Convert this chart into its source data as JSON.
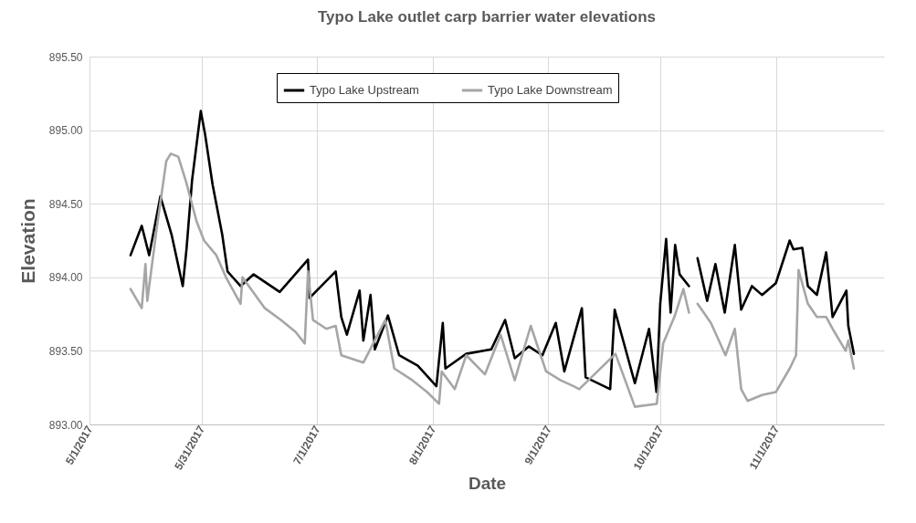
{
  "chart_data": {
    "type": "line",
    "title": "Typo Lake outlet carp barrier water elevations",
    "xlabel": "Date",
    "ylabel": "Elevation",
    "xlim": [
      "2017-05-01",
      "2017-11-30"
    ],
    "xticks": [
      {
        "value": "2017-05-01",
        "label": "5/1/2017"
      },
      {
        "value": "2017-05-31",
        "label": "5/31/2017"
      },
      {
        "value": "2017-07-01",
        "label": "7/1/2017"
      },
      {
        "value": "2017-08-01",
        "label": "8/1/2017"
      },
      {
        "value": "2017-09-01",
        "label": "9/1/2017"
      },
      {
        "value": "2017-10-01",
        "label": "10/1/2017"
      },
      {
        "value": "2017-11-01",
        "label": "11/1/2017"
      }
    ],
    "ylim": [
      893,
      895.5
    ],
    "yticks": [
      {
        "value": 893,
        "label": "893.00"
      },
      {
        "value": 893.5,
        "label": "893.50"
      },
      {
        "value": 894,
        "label": "894.00"
      },
      {
        "value": 894.5,
        "label": "894.50"
      },
      {
        "value": 895,
        "label": "895.00"
      },
      {
        "value": 895.5,
        "label": "895.50"
      }
    ],
    "grid": true,
    "legend": "top",
    "line_style": "solid",
    "marker": "none",
    "series": [
      {
        "name": "Typo Lake Upstream",
        "color": "#000000",
        "x": [
          "2017-05-12",
          "2017-05-15",
          "2017-05-17",
          "2017-05-20",
          "2017-05-23",
          "2017-05-26",
          "2017-05-27",
          "2017-05-28T12:00",
          "2017-05-30T20:00",
          "2017-06-01",
          "2017-06-03",
          "2017-06-05T14:00",
          "2017-06-07",
          "2017-06-10T12:00",
          "2017-06-14",
          "2017-06-21",
          "2017-06-28T14:00",
          "2017-06-29",
          "2017-07-06",
          "2017-07-07T12:00",
          "2017-07-09",
          "2017-07-12T10:00",
          "2017-07-13T10:00",
          "2017-07-15T08:00",
          "2017-07-16T12:00",
          "2017-07-20",
          "2017-07-23",
          "2017-07-28",
          "2017-08-02",
          "2017-08-03T17:00",
          "2017-08-04T10:00",
          "2017-08-10",
          "2017-08-16T17:00",
          "2017-08-20T10:00",
          "2017-08-23",
          "2017-08-26T19:00",
          "2017-08-30T10:00",
          "2017-09-03",
          "2017-09-05T07:00",
          "2017-09-10",
          "2017-09-11",
          "2017-09-17T14:00",
          "2017-09-18T19:00",
          "2017-09-24T05:00",
          "2017-09-28",
          "2017-09-30",
          "2017-10-01",
          "2017-10-02T14:00",
          "2017-10-03T19:00",
          "2017-10-05",
          "2017-10-06T05:00",
          "2017-10-08T17:00",
          "2017-10-09T22:00",
          "2017-10-11",
          "2017-10-13T14:00",
          "2017-10-15T19:00",
          "2017-10-18T07:00",
          "2017-10-21",
          "2017-10-22T17:00",
          "2017-10-25T14:00",
          "2017-10-28T07:00",
          "2017-11-01",
          "2017-11-04T17:00",
          "2017-11-05T17:00",
          "2017-11-08T02:00",
          "2017-11-09T14:00",
          "2017-11-12",
          "2017-11-14T12:00",
          "2017-11-16T05:00",
          "2017-11-19T22:00",
          "2017-11-20T10:00",
          "2017-11-21T22:00"
        ],
        "values": [
          894.15,
          894.35,
          894.15,
          894.55,
          894.29,
          893.94,
          894.19,
          894.66,
          895.13,
          894.97,
          894.63,
          894.29,
          894.04,
          893.94,
          894.02,
          893.9,
          894.12,
          893.86,
          894.04,
          893.73,
          893.61,
          893.91,
          893.57,
          893.88,
          893.51,
          893.74,
          893.47,
          893.4,
          893.26,
          893.69,
          893.38,
          893.48,
          893.51,
          893.71,
          893.45,
          893.53,
          893.47,
          893.69,
          893.36,
          893.79,
          893.32,
          893.24,
          893.78,
          893.28,
          893.65,
          893.22,
          893.82,
          894.26,
          893.76,
          894.22,
          894.02,
          893.94,
          null,
          894.13,
          893.84,
          894.09,
          893.76,
          894.22,
          893.78,
          893.94,
          893.88,
          893.96,
          894.25,
          894.19,
          894.2,
          893.94,
          893.88,
          894.17,
          893.73,
          893.91,
          893.67,
          893.48
        ]
      },
      {
        "name": "Typo Lake Downstream",
        "color": "#a6a6a6",
        "x": [
          "2017-05-12",
          "2017-05-15",
          "2017-05-16",
          "2017-05-16T12:00",
          "2017-05-19",
          "2017-05-21T14:00",
          "2017-05-22T19:00",
          "2017-05-24T19:00",
          "2017-05-27",
          "2017-05-29T17:00",
          "2017-05-31T17:00",
          "2017-06-04",
          "2017-06-06T14:00",
          "2017-06-10T12:00",
          "2017-06-11",
          "2017-06-17",
          "2017-06-21T07:00",
          "2017-06-25T05:00",
          "2017-06-27T17:00",
          "2017-06-28T14:00",
          "2017-06-29T22:00",
          "2017-07-03T12:00",
          "2017-07-06",
          "2017-07-07T12:00",
          "2017-07-13T10:00",
          "2017-07-19T07:00",
          "2017-07-21T17:00",
          "2017-07-26T14:00",
          "2017-07-30T12:00",
          "2017-08-02T17:00",
          "2017-08-03T10:00",
          "2017-08-06T22:00",
          "2017-08-10",
          "2017-08-15",
          "2017-08-19T05:00",
          "2017-08-23",
          "2017-08-27T07:00",
          "2017-08-31T10:00",
          "2017-09-04T07:00",
          "2017-09-07T19:00",
          "2017-09-09T07:00",
          "2017-09-19",
          "2017-09-24T05:00",
          "2017-09-30T02:00",
          "2017-10-01T19:00",
          "2017-10-04T19:00",
          "2017-10-07T05:00",
          "2017-10-08T17:00",
          "2017-10-09T22:00",
          "2017-10-11",
          "2017-10-14T14:00",
          "2017-10-18T12:00",
          "2017-10-21",
          "2017-10-22T17:00",
          "2017-10-24T10:00",
          "2017-10-28T07:00",
          "2017-11-01",
          "2017-11-04T17:00",
          "2017-11-06T10:00",
          "2017-11-07T02:00",
          "2017-11-09T14:00",
          "2017-11-12",
          "2017-11-14T12:00",
          "2017-11-16T05:00",
          "2017-11-19T17:00",
          "2017-11-20T10:00",
          "2017-11-21T22:00"
        ],
        "values": [
          893.92,
          893.79,
          894.09,
          893.84,
          894.33,
          894.79,
          894.84,
          894.82,
          894.64,
          894.38,
          894.25,
          894.15,
          894.0,
          893.82,
          894.0,
          893.79,
          893.71,
          893.63,
          893.55,
          894.04,
          893.71,
          893.65,
          893.67,
          893.47,
          893.42,
          893.71,
          893.38,
          893.3,
          893.22,
          893.14,
          893.36,
          893.24,
          893.47,
          893.34,
          893.61,
          893.3,
          893.67,
          893.36,
          893.3,
          893.26,
          893.24,
          893.48,
          893.12,
          893.14,
          893.55,
          893.73,
          893.92,
          893.76,
          null,
          893.82,
          893.69,
          893.47,
          893.65,
          893.24,
          893.16,
          893.2,
          893.22,
          893.38,
          893.47,
          894.05,
          893.82,
          893.73,
          893.73,
          893.65,
          893.5,
          893.57,
          893.38
        ]
      }
    ]
  }
}
